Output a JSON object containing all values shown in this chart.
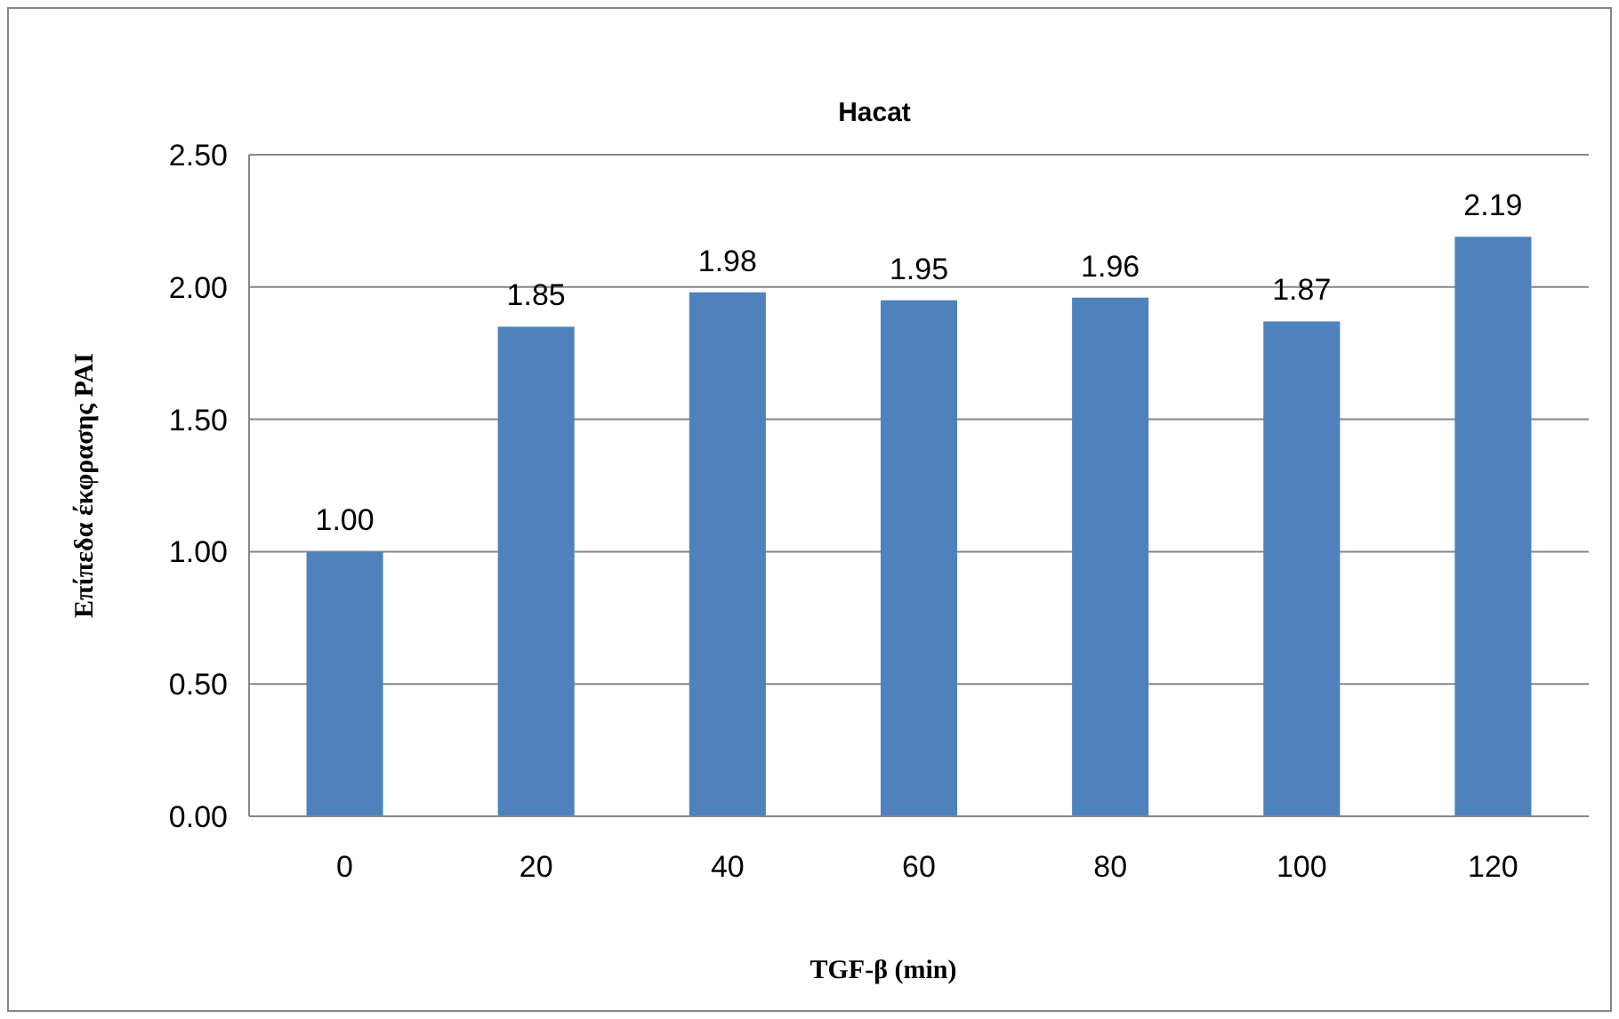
{
  "chart_data": {
    "type": "bar",
    "title": "Hacat",
    "xlabel": "TGF-β (min)",
    "ylabel": "Επίπεδα έκφρασης PAI",
    "categories": [
      "0",
      "20",
      "40",
      "60",
      "80",
      "100",
      "120"
    ],
    "values": [
      1.0,
      1.85,
      1.98,
      1.95,
      1.96,
      1.87,
      2.19
    ],
    "value_labels": [
      "1.00",
      "1.85",
      "1.98",
      "1.95",
      "1.96",
      "1.87",
      "2.19"
    ],
    "color": "#4f81bd",
    "ylim": [
      0,
      2.5
    ],
    "yticks": [
      {
        "value": 0,
        "label": "0.00"
      },
      {
        "value": 0.5,
        "label": "0.50"
      },
      {
        "value": 1,
        "label": "1.00"
      },
      {
        "value": 1.5,
        "label": "1.50"
      },
      {
        "value": 2,
        "label": "2.00"
      },
      {
        "value": 2.5,
        "label": "2.50"
      }
    ],
    "grid": "y"
  }
}
